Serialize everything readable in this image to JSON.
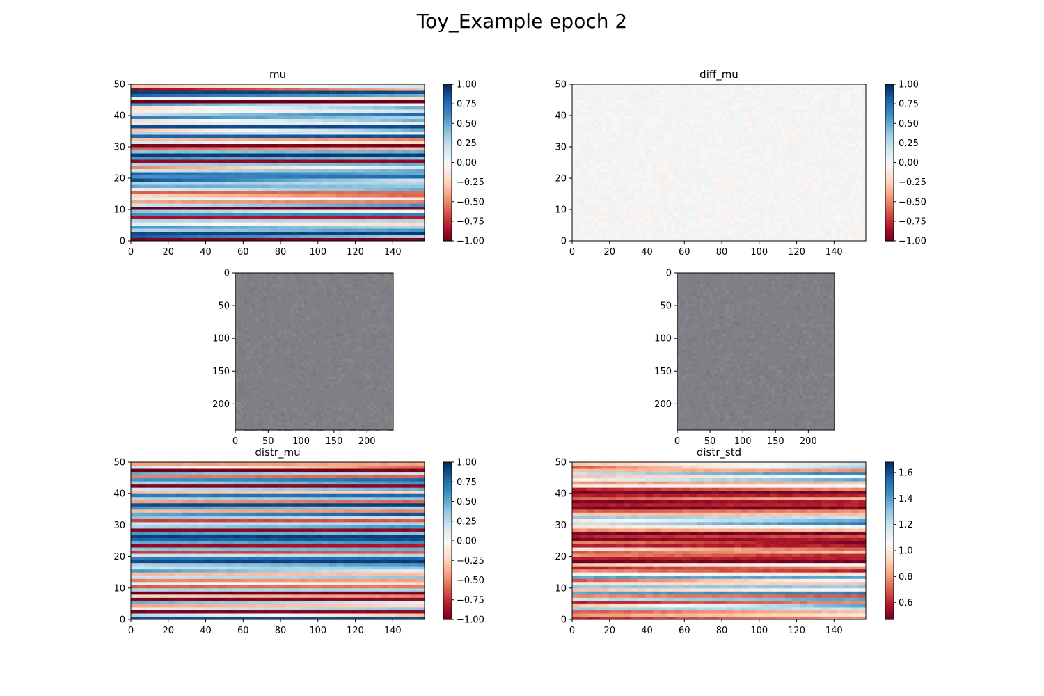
{
  "figure": {
    "suptitle": "Toy_Example epoch 2"
  },
  "chart_data": [
    {
      "id": "mu",
      "type": "heatmap",
      "title": "mu",
      "cmap": "RdBu",
      "vmin": -1.0,
      "vmax": 1.0,
      "xlim": [
        0,
        157
      ],
      "ylim": [
        0,
        50
      ],
      "y_origin": "lower",
      "xticks": [
        0,
        20,
        40,
        60,
        80,
        100,
        120,
        140
      ],
      "yticks": [
        0,
        10,
        20,
        30,
        40,
        50
      ],
      "colorbar_ticks": [
        -1.0,
        -0.75,
        -0.5,
        -0.25,
        0.0,
        0.25,
        0.5,
        0.75,
        1.0
      ],
      "colorbar_tick_labels": [
        "−1.00",
        "−0.75",
        "−0.50",
        "−0.25",
        "0.00",
        "0.25",
        "0.50",
        "0.75",
        "1.00"
      ],
      "row_values_start": [
        -0.95,
        0.85,
        0.9,
        0.3,
        0.6,
        0.1,
        0.3,
        -0.85,
        0.6,
        0.4,
        -1.0,
        0.2,
        -0.4,
        0.1,
        -0.2,
        -0.6,
        0.1,
        0.5,
        0.3,
        0.9,
        0.6,
        0.8,
        0.2,
        -0.5,
        0.3,
        -0.9,
        0.6,
        0.95,
        0.4,
        -0.6,
        -0.95,
        0.2,
        -0.3,
        0.8,
        0.3,
        -0.3,
        0.9,
        0.1,
        -0.2,
        0.7,
        0.2,
        -0.1,
        -0.2,
        0.6,
        -1.0,
        0.1,
        0.8,
        0.95,
        -0.9,
        -0.3
      ],
      "row_values_end": [
        -0.95,
        0.3,
        0.95,
        0.6,
        0.3,
        -0.2,
        0.3,
        -0.8,
        0.7,
        0.0,
        -0.95,
        0.6,
        -0.5,
        -0.1,
        -0.6,
        -0.55,
        0.5,
        0.4,
        0.3,
        0.2,
        0.8,
        0.5,
        0.5,
        0.2,
        0.5,
        -0.9,
        0.4,
        0.95,
        0.5,
        -0.3,
        -0.95,
        -0.2,
        -0.5,
        0.9,
        0.1,
        0.5,
        0.9,
        0.1,
        0.5,
        0.3,
        0.8,
        0.2,
        0.5,
        0.0,
        -1.0,
        -0.2,
        0.5,
        0.9,
        -0.3,
        0.2
      ]
    },
    {
      "id": "diff_mu",
      "type": "heatmap",
      "title": "diff_mu",
      "cmap": "RdBu",
      "vmin": -1.0,
      "vmax": 1.0,
      "xlim": [
        0,
        157
      ],
      "ylim": [
        0,
        50
      ],
      "y_origin": "lower",
      "xticks": [
        0,
        20,
        40,
        60,
        80,
        100,
        120,
        140
      ],
      "yticks": [
        0,
        10,
        20,
        30,
        40,
        50
      ],
      "colorbar_ticks": [
        -1.0,
        -0.75,
        -0.5,
        -0.25,
        0.0,
        0.25,
        0.5,
        0.75,
        1.0
      ],
      "colorbar_tick_labels": [
        "−1.00",
        "−0.75",
        "−0.50",
        "−0.25",
        "0.00",
        "0.25",
        "0.50",
        "0.75",
        "1.00"
      ],
      "value_range": [
        -0.06,
        0.06
      ]
    },
    {
      "id": "image_left",
      "type": "heatmap",
      "title": "",
      "cmap": "gray-noise",
      "xlim": [
        0,
        240
      ],
      "ylim": [
        240,
        0
      ],
      "y_origin": "upper",
      "xticks": [
        0,
        50,
        100,
        150,
        200
      ],
      "yticks": [
        0,
        50,
        100,
        150,
        200
      ],
      "base_color": "#7f7f85"
    },
    {
      "id": "image_right",
      "type": "heatmap",
      "title": "",
      "cmap": "gray-noise",
      "xlim": [
        0,
        240
      ],
      "ylim": [
        240,
        0
      ],
      "y_origin": "upper",
      "xticks": [
        0,
        50,
        100,
        150,
        200
      ],
      "yticks": [
        0,
        50,
        100,
        150,
        200
      ],
      "base_color": "#7f7f85"
    },
    {
      "id": "distr_mu",
      "type": "heatmap",
      "title": "distr_mu",
      "cmap": "RdBu",
      "vmin": -1.0,
      "vmax": 1.0,
      "xlim": [
        0,
        157
      ],
      "ylim": [
        0,
        50
      ],
      "y_origin": "lower",
      "xticks": [
        0,
        20,
        40,
        60,
        80,
        100,
        120,
        140
      ],
      "yticks": [
        0,
        10,
        20,
        30,
        40,
        50
      ],
      "colorbar_ticks": [
        -1.0,
        -0.75,
        -0.5,
        -0.25,
        0.0,
        0.25,
        0.5,
        0.75,
        1.0
      ],
      "colorbar_tick_labels": [
        "−1.00",
        "−0.75",
        "−0.50",
        "−0.25",
        "0.00",
        "0.25",
        "0.50",
        "0.75",
        "1.00"
      ],
      "row_values_start": [
        0.9,
        0.3,
        -0.95,
        0.1,
        -0.4,
        0.5,
        -0.95,
        -0.2,
        -1.0,
        0.3,
        -0.6,
        0.1,
        -0.5,
        0.2,
        -0.3,
        0.6,
        0.2,
        0.3,
        0.9,
        0.7,
        0.2,
        -0.7,
        0.4,
        -0.9,
        0.5,
        0.8,
        0.95,
        0.6,
        -0.95,
        0.3,
        0.2,
        -0.7,
        0.4,
        0.5,
        -0.3,
        0.6,
        0.9,
        -0.4,
        0.3,
        0.7,
        -0.3,
        0.2,
        -0.95,
        0.3,
        0.6,
        -0.5,
        0.5,
        -1.0,
        0.2,
        -0.4
      ],
      "row_values_end": [
        0.9,
        -0.3,
        -0.9,
        0.4,
        -0.2,
        0.1,
        -0.9,
        -0.5,
        -0.95,
        0.3,
        -0.5,
        -0.2,
        -0.4,
        0.4,
        -0.3,
        0.1,
        0.4,
        0.6,
        0.95,
        0.8,
        0.3,
        -0.6,
        0.5,
        -0.8,
        0.6,
        0.9,
        0.95,
        0.4,
        -0.9,
        0.6,
        0.3,
        -0.6,
        0.2,
        0.9,
        -0.5,
        0.3,
        0.95,
        -0.6,
        0.4,
        0.8,
        -0.2,
        0.5,
        -0.9,
        0.6,
        0.8,
        -0.6,
        0.2,
        -0.95,
        -0.6,
        -0.4
      ]
    },
    {
      "id": "distr_std",
      "type": "heatmap",
      "title": "distr_std",
      "cmap": "RdBu",
      "vmin": 0.47,
      "vmax": 1.68,
      "xlim": [
        0,
        157
      ],
      "ylim": [
        0,
        50
      ],
      "y_origin": "lower",
      "xticks": [
        0,
        20,
        40,
        60,
        80,
        100,
        120,
        140
      ],
      "yticks": [
        0,
        10,
        20,
        30,
        40,
        50
      ],
      "colorbar_ticks": [
        0.6,
        0.8,
        1.0,
        1.2,
        1.4,
        1.6
      ],
      "colorbar_tick_labels": [
        "0.6",
        "0.8",
        "1.0",
        "1.2",
        "1.4",
        "1.6"
      ],
      "row_values_start": [
        0.6,
        0.8,
        0.7,
        1.3,
        0.9,
        0.6,
        1.2,
        0.8,
        1.4,
        0.9,
        1.3,
        1.0,
        0.7,
        1.4,
        1.1,
        0.8,
        0.6,
        0.9,
        0.5,
        0.6,
        0.8,
        0.7,
        1.0,
        0.6,
        0.8,
        0.5,
        0.6,
        0.5,
        0.8,
        1.0,
        1.2,
        1.0,
        1.3,
        0.9,
        0.7,
        0.5,
        0.6,
        0.5,
        0.7,
        0.6,
        0.5,
        0.6,
        1.0,
        0.8,
        1.1,
        0.9,
        1.2,
        0.9,
        0.7,
        0.9
      ],
      "row_values_end": [
        0.8,
        1.0,
        0.9,
        1.2,
        1.4,
        0.8,
        1.4,
        0.7,
        1.5,
        1.1,
        1.3,
        0.9,
        1.1,
        1.4,
        1.0,
        0.6,
        0.8,
        1.1,
        0.5,
        0.6,
        0.6,
        0.9,
        0.7,
        0.6,
        0.5,
        0.6,
        0.7,
        0.5,
        0.9,
        1.1,
        1.5,
        1.4,
        1.2,
        0.9,
        0.8,
        0.5,
        0.6,
        0.6,
        0.9,
        0.6,
        0.5,
        0.8,
        1.1,
        0.9,
        1.4,
        1.1,
        1.5,
        0.8,
        1.3,
        1.2
      ]
    }
  ]
}
